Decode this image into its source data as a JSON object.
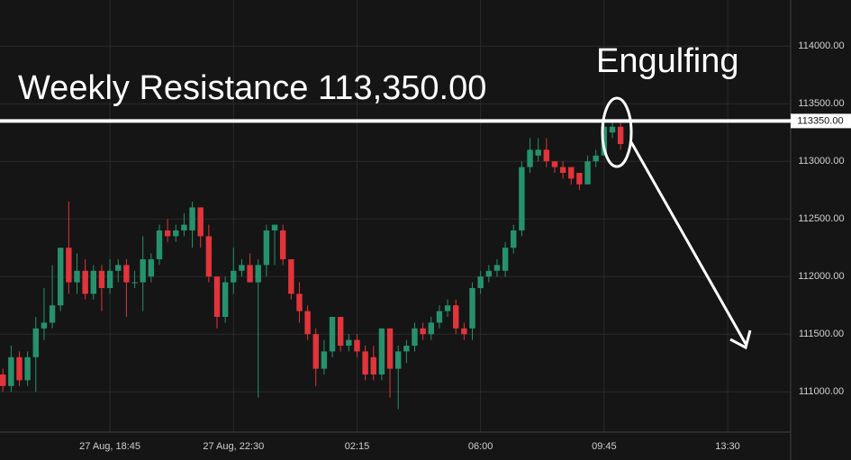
{
  "chart_data": {
    "type": "candlestick",
    "title": "Weekly Resistance 113,350.00",
    "annotation": "Engulfing",
    "up_color": "#26916d",
    "down_color": "#e2343b",
    "resistance": {
      "value": 113350,
      "label": "113350.00"
    },
    "categories": [
      null,
      null,
      null,
      null,
      null,
      null,
      null,
      null,
      null,
      null,
      null,
      null,
      null,
      "27 Aug, 18:45",
      null,
      null,
      null,
      null,
      null,
      null,
      null,
      null,
      null,
      null,
      null,
      null,
      null,
      null,
      "27 Aug, 22:30",
      null,
      null,
      null,
      null,
      null,
      null,
      null,
      null,
      null,
      null,
      null,
      null,
      null,
      null,
      "02:15",
      null,
      null,
      null,
      null,
      null,
      null,
      null,
      null,
      null,
      null,
      null,
      null,
      null,
      null,
      "06:00",
      null,
      null,
      null,
      null,
      null,
      null,
      null,
      null,
      null,
      null,
      null,
      null,
      null,
      null,
      "09:45",
      null,
      null,
      null,
      null,
      null,
      null,
      null,
      null,
      null,
      null,
      null,
      null,
      null,
      null,
      "13:30",
      null,
      null,
      null,
      null,
      null,
      null,
      null
    ],
    "open": [
      111150,
      111050,
      111300,
      111100,
      111300,
      111550,
      111600,
      111750,
      112250,
      111950,
      112050,
      111850,
      112050,
      111900,
      112050,
      112100,
      111950,
      111950,
      112000,
      112150,
      112400,
      112350,
      112400,
      112400,
      112600,
      112350,
      112000,
      111650,
      111950,
      112050,
      112100,
      111950,
      112100,
      112400,
      112400,
      112150,
      111850,
      111700,
      111500,
      111200,
      111350,
      111650,
      111400,
      111450,
      111350,
      111300,
      111150,
      111550,
      111200,
      111350,
      111400,
      111550,
      111500,
      111600,
      111700,
      111750,
      111550,
      111550,
      111900,
      112000,
      112050,
      112050,
      112250,
      112400,
      112950,
      113050,
      113100,
      113000,
      112950,
      112950,
      112900,
      112800,
      113000,
      113050,
      113250,
      113300,
      null,
      null,
      null,
      null,
      null,
      null,
      null,
      null,
      null,
      null,
      null,
      null,
      null,
      null,
      null,
      null,
      null,
      null,
      null,
      null
    ],
    "high": [
      111200,
      111400,
      111350,
      111350,
      111650,
      111900,
      112100,
      112250,
      112650,
      112200,
      112150,
      112100,
      112100,
      112150,
      112150,
      112150,
      112050,
      112350,
      112200,
      112450,
      112500,
      112450,
      112550,
      112650,
      112600,
      112450,
      112000,
      112000,
      112250,
      112150,
      112200,
      112150,
      112450,
      112450,
      112450,
      112150,
      111950,
      111750,
      111550,
      111450,
      111650,
      111650,
      111500,
      111500,
      111400,
      111400,
      111550,
      111550,
      111400,
      111450,
      111600,
      111600,
      111650,
      111750,
      111800,
      111800,
      111600,
      111950,
      112050,
      112100,
      112150,
      112300,
      112450,
      113000,
      113200,
      113200,
      113200,
      113000,
      113000,
      112950,
      112900,
      113050,
      113100,
      113350,
      113350,
      113350,
      null,
      null,
      null,
      null,
      null,
      null,
      null,
      null,
      null,
      null,
      null,
      null,
      null,
      null,
      null,
      null,
      null,
      null,
      null,
      null
    ],
    "low": [
      111000,
      111000,
      111050,
      111050,
      111000,
      111450,
      111550,
      111700,
      111850,
      111850,
      111800,
      111800,
      111700,
      111850,
      111950,
      111650,
      111900,
      111700,
      111950,
      112100,
      112300,
      112300,
      112350,
      112250,
      112250,
      111950,
      111550,
      111600,
      111850,
      112000,
      111950,
      110950,
      112000,
      112100,
      112100,
      111800,
      111600,
      111450,
      111050,
      111150,
      111300,
      111350,
      111350,
      111300,
      111100,
      111100,
      111100,
      110950,
      110850,
      111250,
      111350,
      111450,
      111450,
      111550,
      111650,
      111500,
      111450,
      111450,
      111850,
      111950,
      112000,
      112000,
      112200,
      112350,
      112900,
      113000,
      112950,
      112900,
      112850,
      112800,
      112750,
      112800,
      112950,
      113050,
      113200,
      113100,
      null,
      null,
      null,
      null,
      null,
      null,
      null,
      null,
      null,
      null,
      null,
      null,
      null,
      null,
      null,
      null,
      null,
      null,
      null,
      null
    ],
    "close": [
      111050,
      111300,
      111100,
      111300,
      111550,
      111600,
      111750,
      112250,
      111950,
      112050,
      111850,
      112050,
      111900,
      112050,
      112100,
      111950,
      111950,
      112150,
      112150,
      112400,
      112350,
      112400,
      112450,
      112600,
      112350,
      112000,
      111650,
      111950,
      112050,
      112100,
      111950,
      112100,
      112400,
      112450,
      112150,
      111850,
      111700,
      111500,
      111200,
      111350,
      111650,
      111400,
      111450,
      111350,
      111150,
      111150,
      111550,
      111200,
      111350,
      111400,
      111550,
      111500,
      111600,
      111700,
      111750,
      111550,
      111500,
      111900,
      112000,
      112050,
      112100,
      112250,
      112400,
      112950,
      113100,
      113100,
      113000,
      112950,
      112900,
      112850,
      112800,
      113000,
      113050,
      113300,
      113300,
      113150,
      null,
      null,
      null,
      null,
      null,
      null,
      null,
      null,
      null,
      null,
      null,
      null,
      null,
      null,
      null,
      null,
      null,
      null,
      null,
      null
    ],
    "ylim": [
      110650,
      114400
    ],
    "yticks": [
      {
        "value": 111000,
        "label": "111000.00"
      },
      {
        "value": 111500,
        "label": "111500.00"
      },
      {
        "value": 112000,
        "label": "112000.00"
      },
      {
        "value": 112500,
        "label": "112500.00"
      },
      {
        "value": 113000,
        "label": "113000.00"
      },
      {
        "value": 113500,
        "label": "113500.00"
      },
      {
        "value": 114000,
        "label": "114000.00"
      }
    ],
    "grid": true
  }
}
